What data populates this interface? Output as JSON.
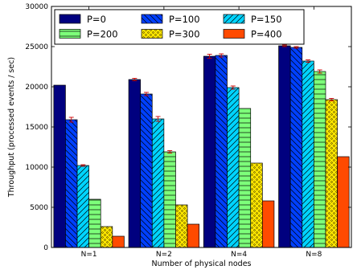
{
  "chart_data": {
    "type": "bar",
    "title": "",
    "xlabel": "Number of physical nodes",
    "ylabel": "Throughput (processed events / sec)",
    "categories": [
      "N=1",
      "N=2",
      "N=4",
      "N=8"
    ],
    "ylim": [
      0,
      30000
    ],
    "yticks": [
      0,
      5000,
      10000,
      15000,
      20000,
      25000,
      30000
    ],
    "grid": false,
    "legend_position": "top-left",
    "legend_columns": 3,
    "series": [
      {
        "name": "P=0",
        "color": "#00007f",
        "pattern": "solid",
        "values": [
          20200,
          20900,
          23800,
          25100
        ],
        "errors": [
          0,
          150,
          250,
          100
        ]
      },
      {
        "name": "P=100",
        "color": "#0040ff",
        "pattern": "back-diag",
        "values": [
          15900,
          19100,
          23900,
          24900
        ],
        "errors": [
          300,
          200,
          200,
          100
        ]
      },
      {
        "name": "P=150",
        "color": "#00d4ff",
        "pattern": "fwd-diag",
        "values": [
          10200,
          16000,
          19900,
          23200
        ],
        "errors": [
          100,
          300,
          200,
          150
        ]
      },
      {
        "name": "P=200",
        "color": "#7dff7a",
        "pattern": "horizontal",
        "values": [
          6000,
          11900,
          17300,
          21900
        ],
        "errors": [
          0,
          150,
          0,
          200
        ]
      },
      {
        "name": "P=300",
        "color": "#ffe600",
        "pattern": "dots",
        "values": [
          2600,
          5300,
          10500,
          18400
        ],
        "errors": [
          0,
          0,
          0,
          150
        ]
      },
      {
        "name": "P=400",
        "color": "#ff4a00",
        "pattern": "solid",
        "values": [
          1400,
          2900,
          5800,
          11300
        ],
        "errors": [
          0,
          0,
          0,
          0
        ]
      }
    ]
  }
}
